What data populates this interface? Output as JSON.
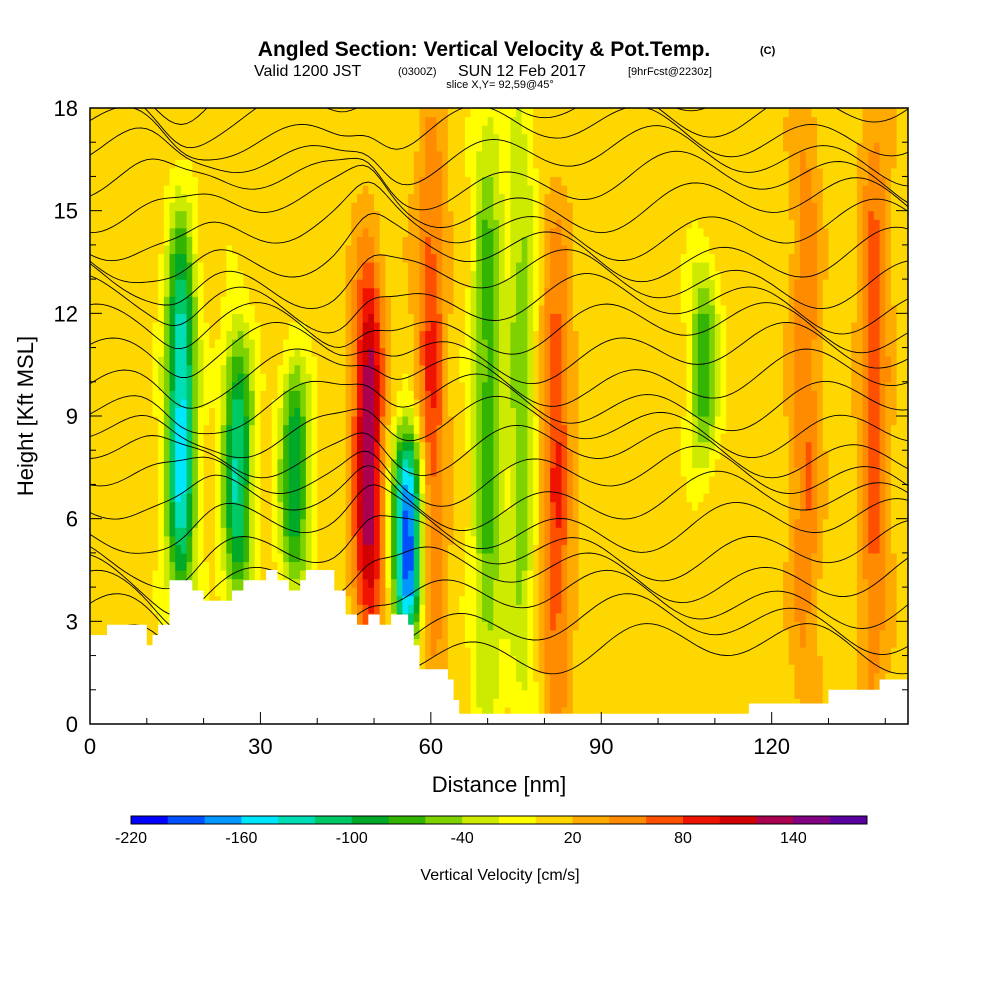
{
  "chart_data": {
    "type": "heatmap",
    "title": "Angled Section: Vertical Velocity & Pot.Temp.",
    "title_mark": "(C)",
    "subtitle": {
      "valid": "Valid 1200 JST",
      "utc": "(0300Z)",
      "date": "SUN 12 Feb 2017",
      "forecast": "[9hrFcst@2230z]"
    },
    "slice_note": "slice X,Y= 92,59@45°",
    "xlabel": "Distance [nm]",
    "ylabel": "Height [Kft MSL]",
    "xlim": [
      0,
      144
    ],
    "ylim": [
      0,
      18
    ],
    "x_ticks": [
      "0",
      "30",
      "60",
      "90",
      "120"
    ],
    "y_ticks": [
      "0",
      "3",
      "6",
      "9",
      "12",
      "15",
      "18"
    ],
    "terrain_kft": [
      [
        0,
        2.6
      ],
      [
        3,
        2.9
      ],
      [
        9,
        2.9
      ],
      [
        10,
        2.3
      ],
      [
        11,
        2.6
      ],
      [
        12,
        2.9
      ],
      [
        14,
        4.2
      ],
      [
        17,
        4.2
      ],
      [
        18,
        3.9
      ],
      [
        20,
        3.6
      ],
      [
        24,
        3.6
      ],
      [
        25,
        3.9
      ],
      [
        27,
        4.2
      ],
      [
        31,
        4.5
      ],
      [
        33,
        4.2
      ],
      [
        35,
        3.9
      ],
      [
        37,
        4.2
      ],
      [
        38,
        4.5
      ],
      [
        41,
        4.5
      ],
      [
        43,
        3.9
      ],
      [
        45,
        3.2
      ],
      [
        47,
        2.9
      ],
      [
        49,
        3.2
      ],
      [
        51,
        2.9
      ],
      [
        53,
        3.2
      ],
      [
        56,
        2.9
      ],
      [
        57,
        2.3
      ],
      [
        58,
        1.6
      ],
      [
        63,
        1.3
      ],
      [
        64,
        0.7
      ],
      [
        65,
        0.3
      ],
      [
        114,
        0.3
      ],
      [
        116,
        0.6
      ],
      [
        129,
        0.6
      ],
      [
        130,
        1.0
      ],
      [
        138,
        1.0
      ],
      [
        139,
        1.3
      ],
      [
        144,
        1.3
      ]
    ],
    "velocity_features": [
      {
        "x": 16,
        "z0": 4,
        "z1": 14,
        "peak": -160
      },
      {
        "x": 26,
        "z0": 4,
        "z1": 11,
        "peak": -130
      },
      {
        "x": 36,
        "z0": 4.5,
        "z1": 10,
        "peak": -110
      },
      {
        "x": 49,
        "z0": 3,
        "z1": 13,
        "peak": 130
      },
      {
        "x": 56,
        "z0": 3,
        "z1": 8,
        "peak": -210
      },
      {
        "x": 60,
        "z0": 2,
        "z1": 17,
        "peak": 70
      },
      {
        "x": 70,
        "z0": 0.5,
        "z1": 18,
        "peak": -80
      },
      {
        "x": 76,
        "z0": 0.5,
        "z1": 18,
        "peak": -60
      },
      {
        "x": 82,
        "z0": 0.5,
        "z1": 14,
        "peak": 70
      },
      {
        "x": 108,
        "z0": 8,
        "z1": 13,
        "peak": -80
      },
      {
        "x": 126,
        "z0": 1,
        "z1": 18,
        "peak": 50
      },
      {
        "x": 138,
        "z0": 1,
        "z1": 18,
        "peak": 60
      }
    ],
    "colorbar": {
      "label": "Vertical Velocity [cm/s]",
      "min": -220,
      "max": 180,
      "step": 20,
      "tick_labels": [
        "-220",
        "-160",
        "-100",
        "-40",
        "20",
        "80",
        "140"
      ],
      "colors": [
        "#0000ff",
        "#0050ff",
        "#0096ff",
        "#00e6ff",
        "#00dcb4",
        "#00c864",
        "#00aa28",
        "#32b400",
        "#7dd200",
        "#cdeb00",
        "#ffff00",
        "#ffd700",
        "#ffaa00",
        "#ff8c00",
        "#ff5000",
        "#f01400",
        "#d20000",
        "#aa0050",
        "#820082",
        "#5a00a0"
      ]
    },
    "contour_levels_k": [
      3,
      6,
      9,
      10,
      12,
      14,
      16,
      18
    ]
  }
}
